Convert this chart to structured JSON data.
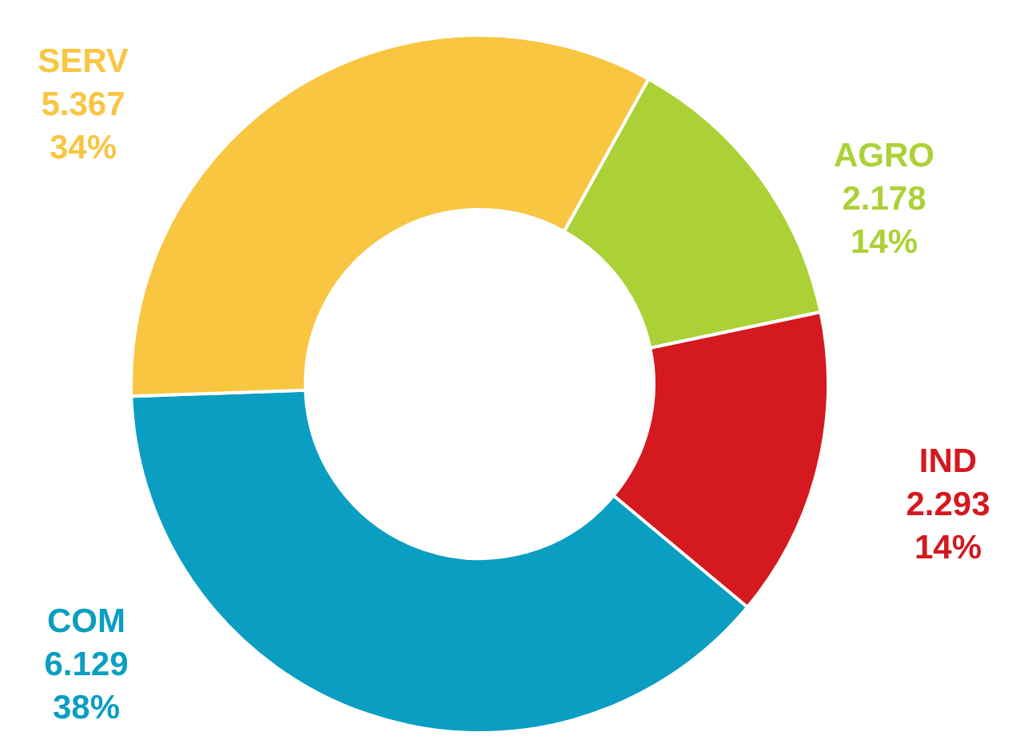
{
  "chart_data": {
    "type": "donut",
    "categories": [
      "AGRO",
      "IND",
      "COM",
      "SERV"
    ],
    "values": [
      2.178,
      2.293,
      6.129,
      5.367
    ],
    "colors": [
      "#acd136",
      "#d4191f",
      "#0a9ec2",
      "#f9c642"
    ],
    "value_labels": [
      "2.178\n14%",
      "2.293\n14%",
      "6.129\n38%",
      "5.367\n34%"
    ]
  }
}
